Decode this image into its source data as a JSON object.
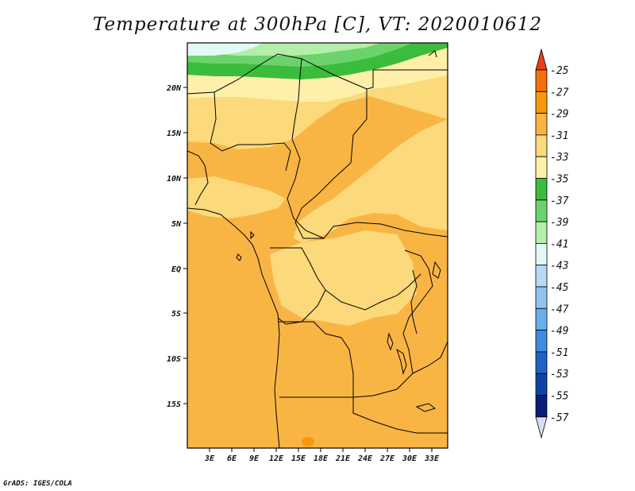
{
  "title": "Temperature at 300hPa [C], VT: 2020010612",
  "credit": "GrADS: IGES/COLA",
  "map": {
    "variable": "Temperature",
    "level": "300hPa",
    "units": "C",
    "valid_time": "2020010612",
    "lat_ticks": [
      "20N",
      "15N",
      "10N",
      "5N",
      "EQ",
      "5S",
      "10S",
      "15S"
    ],
    "lon_ticks": [
      "3E",
      "6E",
      "9E",
      "12E",
      "15E",
      "18E",
      "21E",
      "24E",
      "27E",
      "30E",
      "33E"
    ]
  },
  "colorbar": {
    "labels": [
      "-25",
      "-27",
      "-29",
      "-31",
      "-33",
      "-35",
      "-37",
      "-39",
      "-41",
      "-43",
      "-45",
      "-47",
      "-49",
      "-51",
      "-53",
      "-55",
      "-57"
    ],
    "colors": [
      "#e8401a",
      "#f26e0f",
      "#f7980f",
      "#f9b544",
      "#fcd97a",
      "#fef0a8",
      "#3cbc3c",
      "#6cd36c",
      "#b4eeaa",
      "#e2faf6",
      "#b4daf6",
      "#90c4ee",
      "#6aaeea",
      "#3e8ce2",
      "#1f63c9",
      "#0f44a6",
      "#0a1e78",
      "#e0e2f6"
    ],
    "top_color": "#e8401a",
    "bottom_color": "#dcdcf2"
  }
}
